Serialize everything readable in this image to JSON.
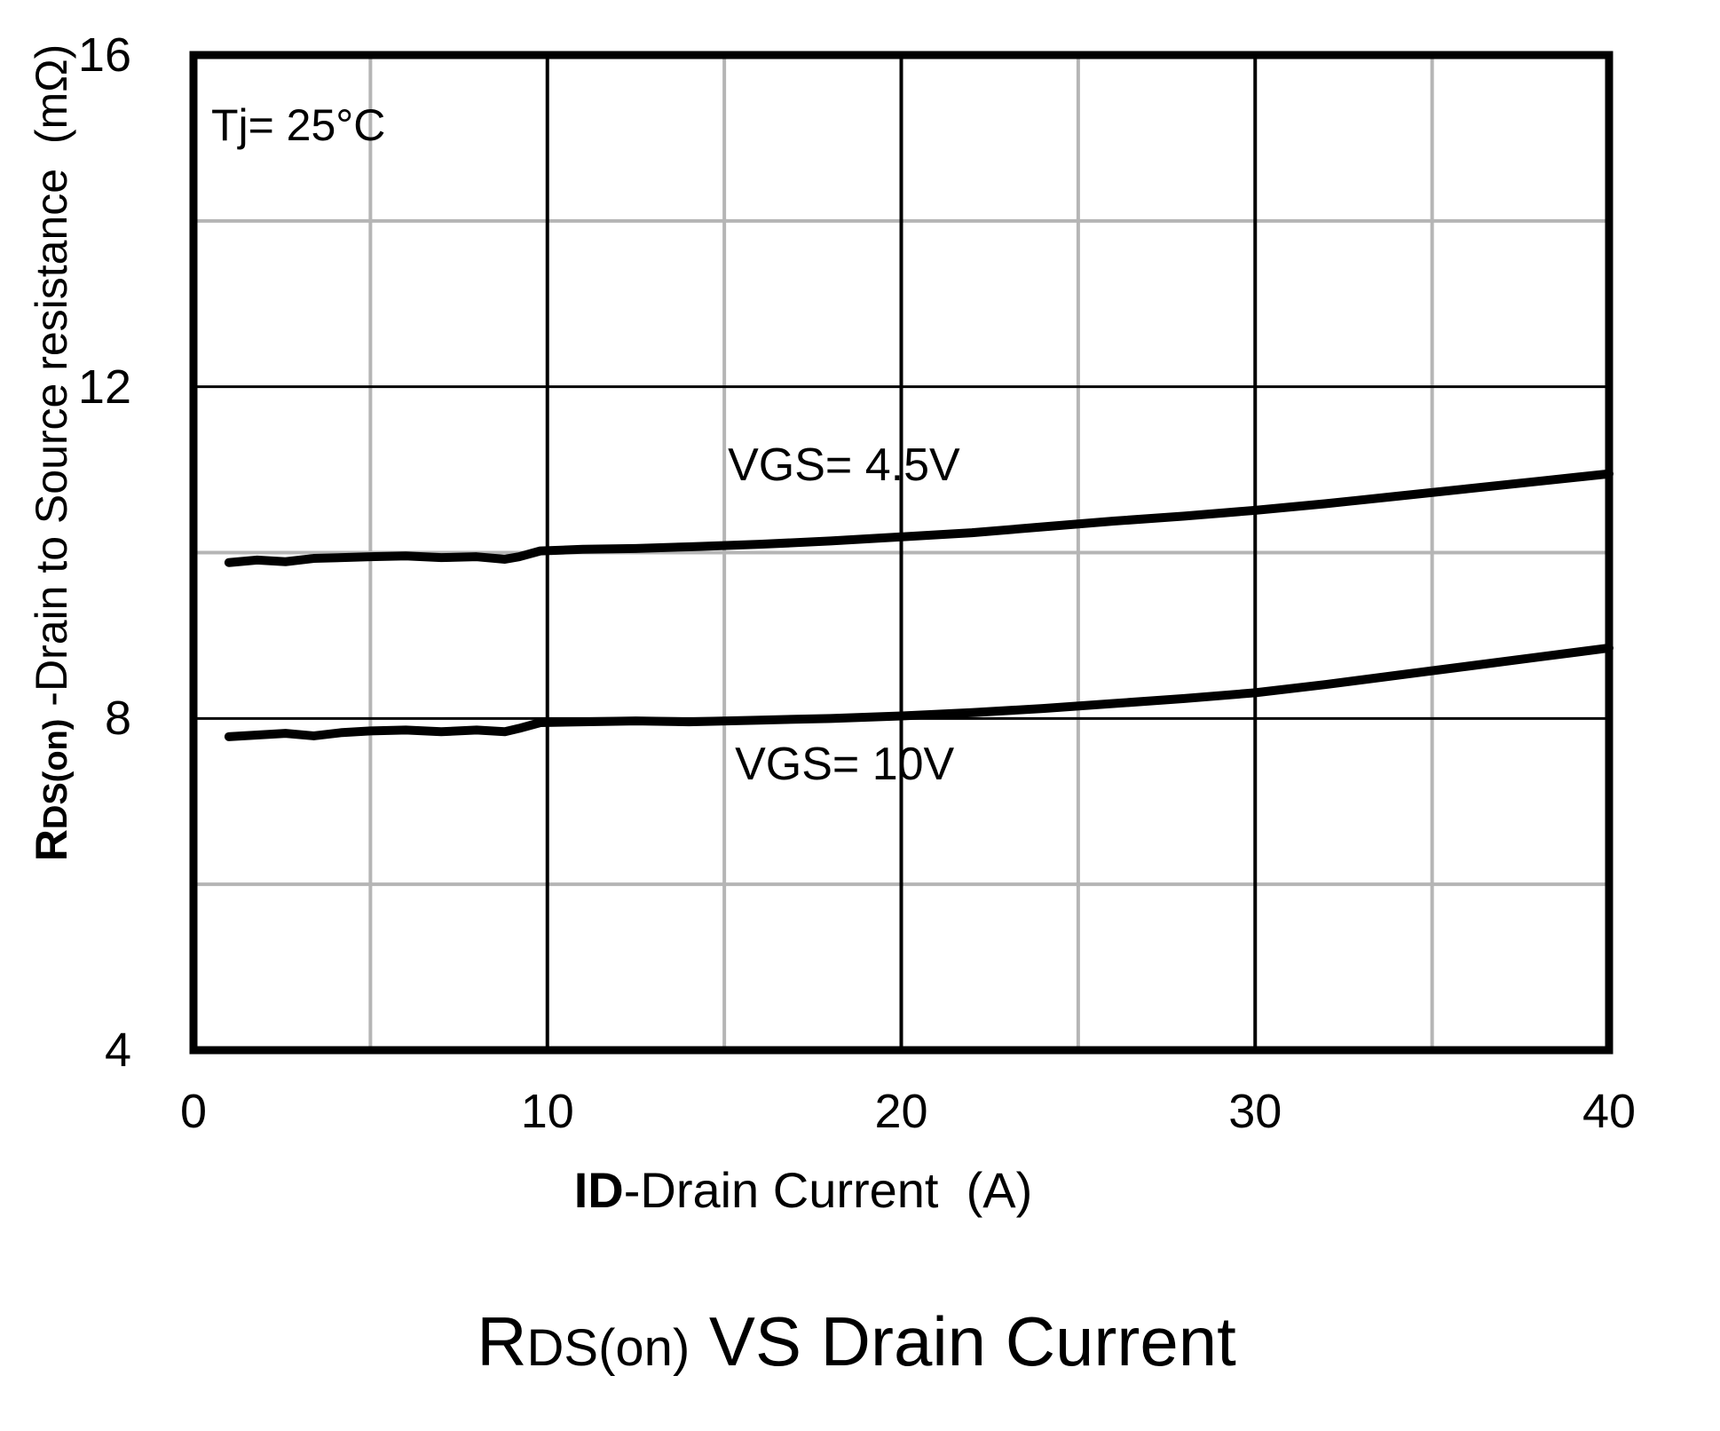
{
  "chart_data": {
    "type": "line",
    "title": {
      "main": "R",
      "sub": "DS(on)",
      "rest": " VS Drain Current"
    },
    "annotation": {
      "text": "Tj= 25°C",
      "x": 0.5,
      "y": 15.15
    },
    "x_axis": {
      "label_main": "ID",
      "label_rest": "-Drain Current  (A)",
      "range": [
        0,
        40
      ],
      "ticks": [
        0,
        10,
        20,
        30,
        40
      ],
      "minor_gridlines": [
        5,
        15,
        25,
        35
      ]
    },
    "y_axis": {
      "label_bold": "R",
      "label_bold_sub": "DS(on)",
      "label_rest": " -Drain to Source resistance  (mΩ)",
      "range": [
        4,
        16
      ],
      "ticks": [
        16,
        12,
        8,
        4
      ],
      "minor_gridlines": [
        6,
        10,
        14
      ]
    },
    "grid": {
      "major_on": true,
      "minor_on": true,
      "legend": "inline-labels"
    },
    "colors": {
      "curve": "#000000",
      "frame": "#000000",
      "grid_major": "#000000",
      "grid_minor": "#b5b5b5",
      "text": "#000000",
      "background": "#ffffff"
    },
    "series": [
      {
        "label": "VGS= 4.5V",
        "label_pos": {
          "x": 15.1,
          "y": 11.05
        },
        "points": [
          [
            1,
            9.88
          ],
          [
            1.8,
            9.91
          ],
          [
            2.6,
            9.89
          ],
          [
            3.4,
            9.93
          ],
          [
            4.2,
            9.94
          ],
          [
            5,
            9.95
          ],
          [
            6,
            9.96
          ],
          [
            7,
            9.94
          ],
          [
            8,
            9.95
          ],
          [
            8.8,
            9.92
          ],
          [
            9.2,
            9.95
          ],
          [
            9.8,
            10.02
          ],
          [
            11,
            10.04
          ],
          [
            12.5,
            10.05
          ],
          [
            14,
            10.07
          ],
          [
            16,
            10.1
          ],
          [
            18,
            10.14
          ],
          [
            20,
            10.19
          ],
          [
            22,
            10.24
          ],
          [
            24,
            10.31
          ],
          [
            26,
            10.38
          ],
          [
            28,
            10.44
          ],
          [
            30,
            10.51
          ],
          [
            32,
            10.59
          ],
          [
            34,
            10.68
          ],
          [
            36,
            10.77
          ],
          [
            38,
            10.86
          ],
          [
            40,
            10.95
          ]
        ]
      },
      {
        "label": "VGS= 10V",
        "label_pos": {
          "x": 15.3,
          "y": 7.45
        },
        "points": [
          [
            1,
            7.78
          ],
          [
            1.8,
            7.8
          ],
          [
            2.6,
            7.82
          ],
          [
            3.4,
            7.79
          ],
          [
            4.2,
            7.83
          ],
          [
            5,
            7.85
          ],
          [
            6,
            7.86
          ],
          [
            7,
            7.84
          ],
          [
            8,
            7.86
          ],
          [
            8.8,
            7.84
          ],
          [
            9.2,
            7.88
          ],
          [
            9.8,
            7.95
          ],
          [
            11,
            7.96
          ],
          [
            12.5,
            7.97
          ],
          [
            14,
            7.96
          ],
          [
            16,
            7.98
          ],
          [
            18,
            8.0
          ],
          [
            20,
            8.03
          ],
          [
            22,
            8.07
          ],
          [
            24,
            8.12
          ],
          [
            26,
            8.18
          ],
          [
            28,
            8.24
          ],
          [
            30,
            8.31
          ],
          [
            32,
            8.41
          ],
          [
            34,
            8.52
          ],
          [
            36,
            8.63
          ],
          [
            38,
            8.74
          ],
          [
            40,
            8.85
          ]
        ]
      }
    ]
  }
}
